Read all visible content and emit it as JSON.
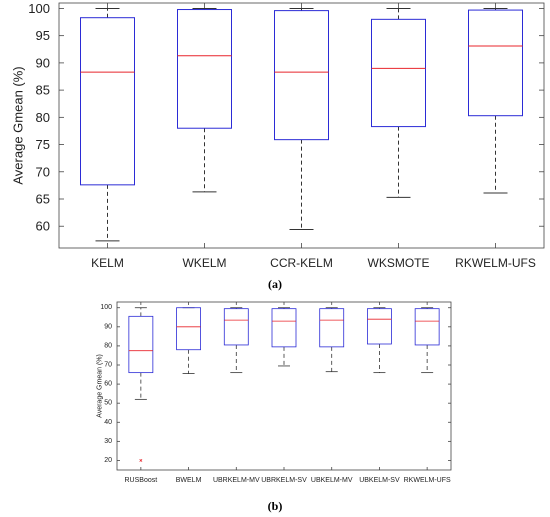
{
  "figure": {
    "caption_a": "(a)",
    "caption_b": "(b)"
  },
  "colors": {
    "box": "#2b2bd6",
    "median": "#e8242b",
    "whisker": "#333333",
    "axis": "#444444",
    "outlier": "#e8242b"
  },
  "chart_data": [
    {
      "type": "box",
      "id": "a",
      "title": "",
      "xlabel": "",
      "ylabel": "Average Gmean (%)",
      "ylim": [
        56,
        101
      ],
      "yticks": [
        60,
        65,
        70,
        75,
        80,
        85,
        90,
        95,
        100
      ],
      "grid": false,
      "categories": [
        "KELM",
        "WKELM",
        "CCR-KELM",
        "WKSMOTE",
        "RKWELM-UFS"
      ],
      "boxes": [
        {
          "min": 57.3,
          "q1": 67.6,
          "median": 88.3,
          "q3": 98.3,
          "max": 100.0
        },
        {
          "min": 66.3,
          "q1": 78.0,
          "median": 91.3,
          "q3": 99.8,
          "max": 100.0
        },
        {
          "min": 59.4,
          "q1": 75.9,
          "median": 88.3,
          "q3": 99.6,
          "max": 100.0
        },
        {
          "min": 65.3,
          "q1": 78.3,
          "median": 89.0,
          "q3": 98.0,
          "max": 100.0
        },
        {
          "min": 66.1,
          "q1": 80.3,
          "median": 93.1,
          "q3": 99.7,
          "max": 100.0
        }
      ]
    },
    {
      "type": "box",
      "id": "b",
      "title": "",
      "xlabel": "",
      "ylabel": "Average Gmean (%)",
      "ylim": [
        15,
        103
      ],
      "yticks": [
        20,
        30,
        40,
        50,
        60,
        70,
        80,
        90,
        100
      ],
      "grid": false,
      "categories": [
        "RUSBoost",
        "BWELM",
        "UBRKELM-MV",
        "UBRKELM-SV",
        "UBKELM-MV",
        "UBKELM-SV",
        "RKWELM-UFS"
      ],
      "boxes": [
        {
          "min": 52.0,
          "q1": 66.0,
          "median": 77.5,
          "q3": 95.5,
          "max": 100.0,
          "outliers": [
            20.0
          ]
        },
        {
          "min": 65.5,
          "q1": 78.0,
          "median": 90.0,
          "q3": 100.0,
          "max": 100.0
        },
        {
          "min": 66.0,
          "q1": 80.5,
          "median": 93.5,
          "q3": 99.5,
          "max": 100.0
        },
        {
          "min": 69.5,
          "q1": 79.5,
          "median": 93.0,
          "q3": 99.5,
          "max": 100.0
        },
        {
          "min": 66.5,
          "q1": 79.5,
          "median": 93.5,
          "q3": 99.5,
          "max": 100.0
        },
        {
          "min": 66.0,
          "q1": 81.0,
          "median": 94.0,
          "q3": 99.5,
          "max": 100.0
        },
        {
          "min": 66.0,
          "q1": 80.5,
          "median": 93.0,
          "q3": 99.5,
          "max": 100.0
        }
      ]
    }
  ]
}
